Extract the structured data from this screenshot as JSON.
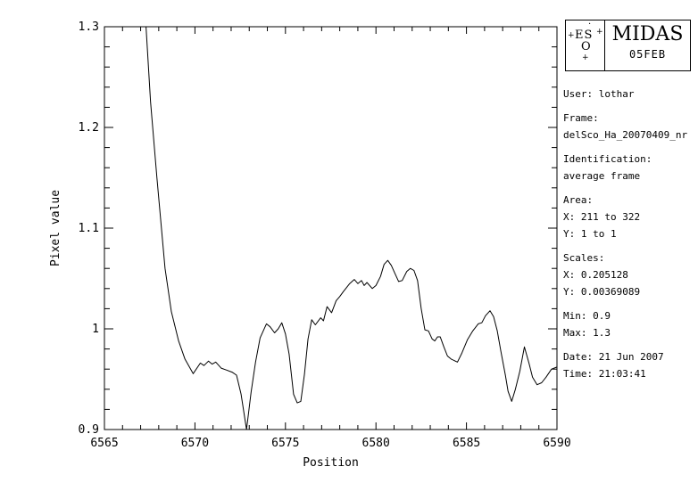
{
  "window": {
    "background": "#ffffff",
    "foreground": "#000000"
  },
  "logo": {
    "title": "MIDAS",
    "version": "05FEB",
    "eso": {
      "dot": "·",
      "star_left": "+",
      "letters_top": "ES",
      "star_right": "+",
      "letter_bottom": "O",
      "star_bottom": "+"
    }
  },
  "sidebar": {
    "groups": [
      [
        "User: lothar"
      ],
      [
        "Frame:",
        "delSco_Ha_20070409_nr"
      ],
      [
        "Identification:",
        "average frame"
      ],
      [
        "Area:",
        "X: 211 to 322",
        "Y: 1 to 1"
      ],
      [
        "Scales:",
        "X: 0.205128",
        "Y: 0.00369089"
      ],
      [
        "Min: 0.9",
        "Max: 1.3"
      ],
      [
        "Date: 21 Jun 2007",
        "Time: 21:03:41"
      ]
    ]
  },
  "chart_data": {
    "type": "line",
    "title": "",
    "xlabel": "Position",
    "ylabel": "Pixel value",
    "xlim": [
      6565,
      6590
    ],
    "ylim": [
      0.9,
      1.3
    ],
    "grid": false,
    "line_color": "#000000",
    "x_major_ticks": [
      6565,
      6570,
      6575,
      6580,
      6585,
      6590
    ],
    "x_tick_labels": [
      "6565",
      "6570",
      "6575",
      "6580",
      "6585",
      "6590"
    ],
    "x_minor_step": 1,
    "y_major_ticks": [
      0.9,
      1.0,
      1.1,
      1.2,
      1.3
    ],
    "y_tick_labels": [
      "0.9",
      "1",
      "1.1",
      "1.2",
      "1.3"
    ],
    "y_minor_step": 0.02,
    "points": [
      [
        6567.3,
        1.3
      ],
      [
        6567.55,
        1.225
      ],
      [
        6567.9,
        1.15
      ],
      [
        6568.35,
        1.06
      ],
      [
        6568.7,
        1.017
      ],
      [
        6569.1,
        0.988
      ],
      [
        6569.45,
        0.97
      ],
      [
        6569.9,
        0.9555
      ],
      [
        6570.3,
        0.966
      ],
      [
        6570.5,
        0.9635
      ],
      [
        6570.75,
        0.968
      ],
      [
        6570.95,
        0.965
      ],
      [
        6571.15,
        0.967
      ],
      [
        6571.45,
        0.961
      ],
      [
        6571.75,
        0.959
      ],
      [
        6572.05,
        0.957
      ],
      [
        6572.3,
        0.954
      ],
      [
        6572.55,
        0.935
      ],
      [
        6572.85,
        0.9
      ],
      [
        6573.1,
        0.937
      ],
      [
        6573.35,
        0.967
      ],
      [
        6573.6,
        0.991
      ],
      [
        6573.95,
        1.005
      ],
      [
        6574.15,
        1.002
      ],
      [
        6574.4,
        0.996
      ],
      [
        6574.6,
        1.0
      ],
      [
        6574.8,
        1.006
      ],
      [
        6575.0,
        0.995
      ],
      [
        6575.2,
        0.975
      ],
      [
        6575.45,
        0.935
      ],
      [
        6575.65,
        0.9265
      ],
      [
        6575.85,
        0.928
      ],
      [
        6576.05,
        0.955
      ],
      [
        6576.25,
        0.99
      ],
      [
        6576.45,
        1.009
      ],
      [
        6576.65,
        1.004
      ],
      [
        6576.95,
        1.011
      ],
      [
        6577.1,
        1.008
      ],
      [
        6577.3,
        1.022
      ],
      [
        6577.55,
        1.016
      ],
      [
        6577.8,
        1.028
      ],
      [
        6578.0,
        1.032
      ],
      [
        6578.2,
        1.037
      ],
      [
        6578.55,
        1.045
      ],
      [
        6578.8,
        1.049
      ],
      [
        6579.0,
        1.045
      ],
      [
        6579.2,
        1.048
      ],
      [
        6579.35,
        1.043
      ],
      [
        6579.5,
        1.046
      ],
      [
        6579.8,
        1.04
      ],
      [
        6580.0,
        1.043
      ],
      [
        6580.25,
        1.052
      ],
      [
        6580.45,
        1.064
      ],
      [
        6580.65,
        1.068
      ],
      [
        6580.85,
        1.063
      ],
      [
        6581.05,
        1.055
      ],
      [
        6581.25,
        1.047
      ],
      [
        6581.45,
        1.048
      ],
      [
        6581.7,
        1.057
      ],
      [
        6581.9,
        1.06
      ],
      [
        6582.1,
        1.058
      ],
      [
        6582.3,
        1.048
      ],
      [
        6582.5,
        1.02
      ],
      [
        6582.7,
        0.999
      ],
      [
        6582.9,
        0.998
      ],
      [
        6583.1,
        0.99
      ],
      [
        6583.25,
        0.988
      ],
      [
        6583.4,
        0.992
      ],
      [
        6583.55,
        0.992
      ],
      [
        6583.75,
        0.982
      ],
      [
        6583.95,
        0.973
      ],
      [
        6584.15,
        0.97
      ],
      [
        6584.5,
        0.967
      ],
      [
        6584.75,
        0.976
      ],
      [
        6585.05,
        0.989
      ],
      [
        6585.35,
        0.998
      ],
      [
        6585.65,
        1.005
      ],
      [
        6585.85,
        1.006
      ],
      [
        6586.05,
        1.013
      ],
      [
        6586.3,
        1.018
      ],
      [
        6586.5,
        1.012
      ],
      [
        6586.7,
        0.998
      ],
      [
        6586.9,
        0.978
      ],
      [
        6587.15,
        0.954
      ],
      [
        6587.3,
        0.938
      ],
      [
        6587.5,
        0.928
      ],
      [
        6587.7,
        0.94
      ],
      [
        6587.95,
        0.958
      ],
      [
        6588.2,
        0.982
      ],
      [
        6588.45,
        0.966
      ],
      [
        6588.65,
        0.952
      ],
      [
        6588.9,
        0.9445
      ],
      [
        6589.15,
        0.9465
      ],
      [
        6589.4,
        0.952
      ],
      [
        6589.7,
        0.96
      ],
      [
        6590.0,
        0.962
      ]
    ]
  }
}
